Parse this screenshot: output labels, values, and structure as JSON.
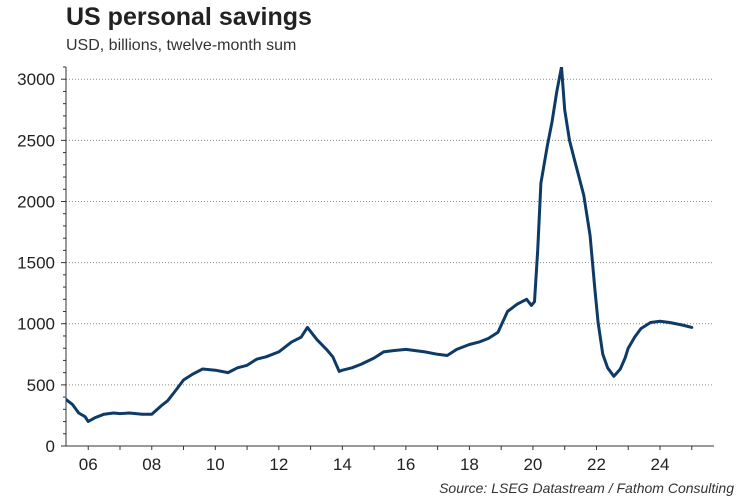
{
  "title": "US personal savings",
  "subtitle": "USD, billions, twelve-month sum",
  "source": "Source: LSEG Datastream / Fathom Consulting",
  "chart_data": {
    "type": "line",
    "title": "US personal savings",
    "subtitle": "USD, billions, twelve-month sum",
    "xlabel": "",
    "ylabel": "",
    "xlim": [
      2005.3,
      2025.7
    ],
    "ylim": [
      0,
      3100
    ],
    "grid": true,
    "line_color": "#0d3b66",
    "x_ticks": [
      {
        "value": 2006,
        "label": "06"
      },
      {
        "value": 2008,
        "label": "08"
      },
      {
        "value": 2010,
        "label": "10"
      },
      {
        "value": 2012,
        "label": "12"
      },
      {
        "value": 2014,
        "label": "14"
      },
      {
        "value": 2016,
        "label": "16"
      },
      {
        "value": 2018,
        "label": "18"
      },
      {
        "value": 2020,
        "label": "20"
      },
      {
        "value": 2022,
        "label": "22"
      },
      {
        "value": 2024,
        "label": "24"
      }
    ],
    "y_ticks": [
      {
        "value": 0,
        "label": "0"
      },
      {
        "value": 500,
        "label": "500"
      },
      {
        "value": 1000,
        "label": "1000"
      },
      {
        "value": 1500,
        "label": "1500"
      },
      {
        "value": 2000,
        "label": "2000"
      },
      {
        "value": 2500,
        "label": "2500"
      },
      {
        "value": 3000,
        "label": "3000"
      }
    ],
    "series": [
      {
        "x": [
          2005.3,
          2005.5,
          2005.7,
          2005.9,
          2006.0,
          2006.2,
          2006.5,
          2006.8,
          2007.0,
          2007.3,
          2007.7,
          2008.0,
          2008.3,
          2008.5,
          2008.8,
          2009.0,
          2009.3,
          2009.6,
          2010.0,
          2010.4,
          2010.7,
          2011.0,
          2011.3,
          2011.6,
          2012.0,
          2012.4,
          2012.7,
          2012.9,
          2013.2,
          2013.5,
          2013.7,
          2013.9,
          2014.0,
          2014.3,
          2014.6,
          2015.0,
          2015.3,
          2015.6,
          2016.0,
          2016.3,
          2016.6,
          2017.0,
          2017.3,
          2017.6,
          2018.0,
          2018.3,
          2018.6,
          2018.9,
          2019.2,
          2019.5,
          2019.8,
          2019.95,
          2020.05,
          2020.15,
          2020.25,
          2020.45,
          2020.6,
          2020.75,
          2020.9,
          2021.0,
          2021.15,
          2021.3,
          2021.45,
          2021.6,
          2021.8,
          2021.95,
          2022.05,
          2022.2,
          2022.35,
          2022.55,
          2022.75,
          2022.9,
          2023.0,
          2023.2,
          2023.4,
          2023.7,
          2024.0,
          2024.3,
          2024.7,
          2025.0
        ],
        "y": [
          380,
          340,
          270,
          240,
          200,
          230,
          260,
          270,
          265,
          270,
          260,
          260,
          330,
          370,
          470,
          540,
          590,
          630,
          620,
          600,
          640,
          660,
          710,
          730,
          770,
          850,
          890,
          970,
          870,
          790,
          730,
          610,
          620,
          640,
          670,
          720,
          770,
          780,
          790,
          780,
          770,
          750,
          740,
          790,
          830,
          850,
          880,
          930,
          1100,
          1160,
          1200,
          1150,
          1180,
          1600,
          2150,
          2450,
          2650,
          2900,
          3100,
          2750,
          2500,
          2350,
          2200,
          2050,
          1720,
          1280,
          1010,
          750,
          640,
          570,
          630,
          720,
          800,
          890,
          960,
          1010,
          1020,
          1010,
          990,
          970
        ]
      }
    ]
  }
}
